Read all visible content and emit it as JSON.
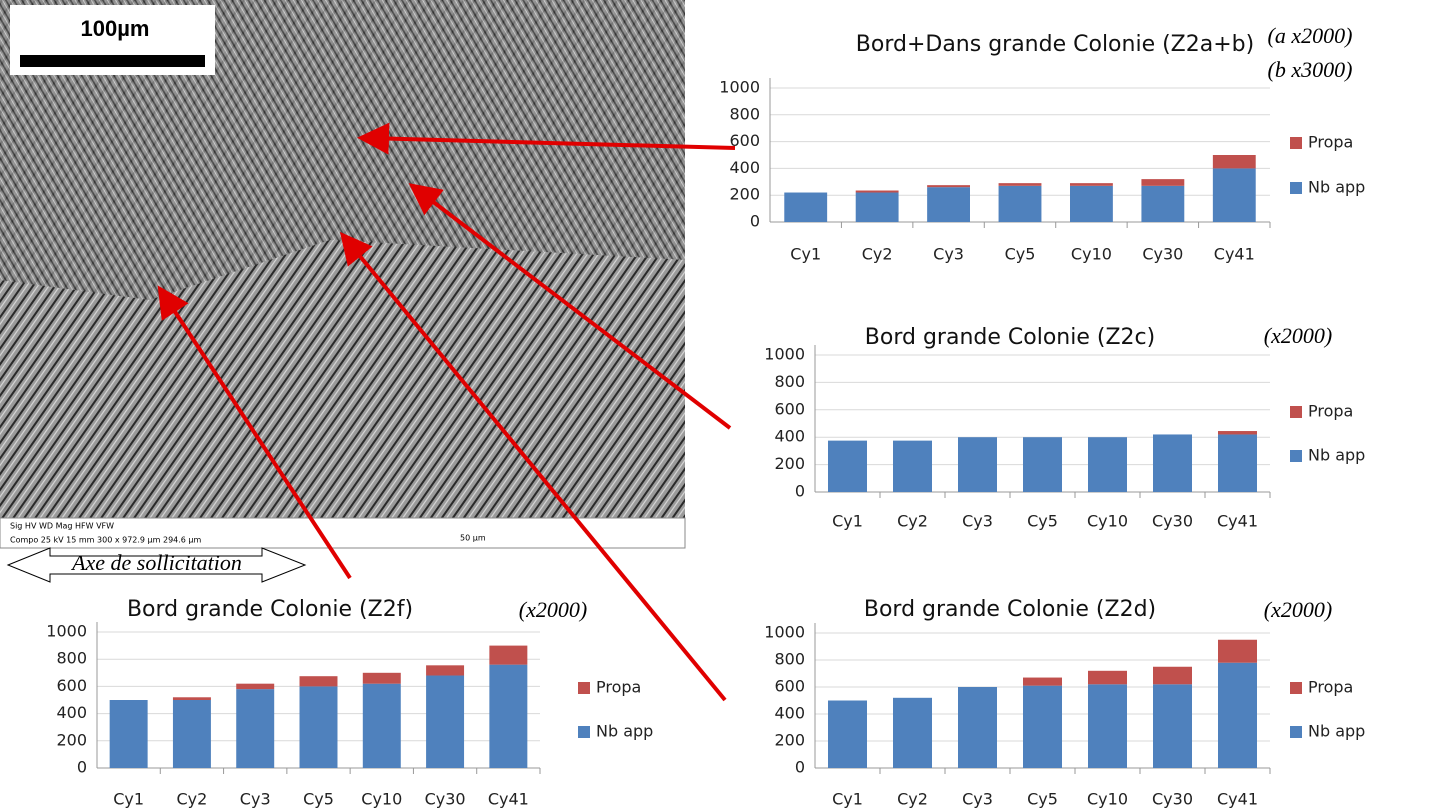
{
  "image": {
    "scale_bar": "100µm",
    "axis_label": "Axe de sollicitation",
    "info_labels": "Sig  HV  WD  Mag  HFW  VFW",
    "info_values": "Compo 25 kV 15 mm 300 x 972.9 µm 294.6 µm",
    "info_scale": "50 µm"
  },
  "chart_data": [
    {
      "type": "bar",
      "stacked": true,
      "title": "Bord+Dans grande Colonie (Z2a+b)",
      "annotations": [
        "(a x2000)",
        "(b x3000)"
      ],
      "categories": [
        "Cy1",
        "Cy2",
        "Cy3",
        "Cy5",
        "Cy10",
        "Cy30",
        "Cy41"
      ],
      "series": [
        {
          "name": "Nb app",
          "color": "#4f81bd",
          "values": [
            220,
            220,
            260,
            270,
            270,
            270,
            400
          ]
        },
        {
          "name": "Propa",
          "color": "#c0504d",
          "values": [
            0,
            15,
            15,
            20,
            20,
            50,
            100
          ]
        }
      ],
      "ylim": [
        0,
        1000
      ],
      "yticks": [
        0,
        200,
        400,
        600,
        800,
        1000
      ],
      "grid": true,
      "legend": "right"
    },
    {
      "type": "bar",
      "stacked": true,
      "title": "Bord grande Colonie (Z2c)",
      "annotations": [
        "(x2000)"
      ],
      "categories": [
        "Cy1",
        "Cy2",
        "Cy3",
        "Cy5",
        "Cy10",
        "Cy30",
        "Cy41"
      ],
      "series": [
        {
          "name": "Nb app",
          "color": "#4f81bd",
          "values": [
            375,
            375,
            400,
            400,
            400,
            420,
            420
          ]
        },
        {
          "name": "Propa",
          "color": "#c0504d",
          "values": [
            0,
            0,
            0,
            0,
            0,
            0,
            25
          ]
        }
      ],
      "ylim": [
        0,
        1000
      ],
      "yticks": [
        0,
        200,
        400,
        600,
        800,
        1000
      ],
      "grid": true,
      "legend": "right"
    },
    {
      "type": "bar",
      "stacked": true,
      "title": "Bord grande Colonie (Z2f)",
      "annotations": [
        "(x2000)"
      ],
      "categories": [
        "Cy1",
        "Cy2",
        "Cy3",
        "Cy5",
        "Cy10",
        "Cy30",
        "Cy41"
      ],
      "series": [
        {
          "name": "Nb app",
          "color": "#4f81bd",
          "values": [
            500,
            500,
            580,
            600,
            620,
            680,
            760
          ]
        },
        {
          "name": "Propa",
          "color": "#c0504d",
          "values": [
            0,
            20,
            40,
            75,
            80,
            75,
            140
          ]
        }
      ],
      "ylim": [
        0,
        1000
      ],
      "yticks": [
        0,
        200,
        400,
        600,
        800,
        1000
      ],
      "grid": true,
      "legend": "right"
    },
    {
      "type": "bar",
      "stacked": true,
      "title": "Bord grande Colonie (Z2d)",
      "annotations": [
        "(x2000)"
      ],
      "categories": [
        "Cy1",
        "Cy2",
        "Cy3",
        "Cy5",
        "Cy10",
        "Cy30",
        "Cy41"
      ],
      "series": [
        {
          "name": "Nb app",
          "color": "#4f81bd",
          "values": [
            500,
            520,
            600,
            610,
            620,
            620,
            780
          ]
        },
        {
          "name": "Propa",
          "color": "#c0504d",
          "values": [
            0,
            0,
            0,
            60,
            100,
            130,
            170
          ]
        }
      ],
      "ylim": [
        0,
        1000
      ],
      "yticks": [
        0,
        200,
        400,
        600,
        800,
        1000
      ],
      "grid": true,
      "legend": "right"
    }
  ]
}
